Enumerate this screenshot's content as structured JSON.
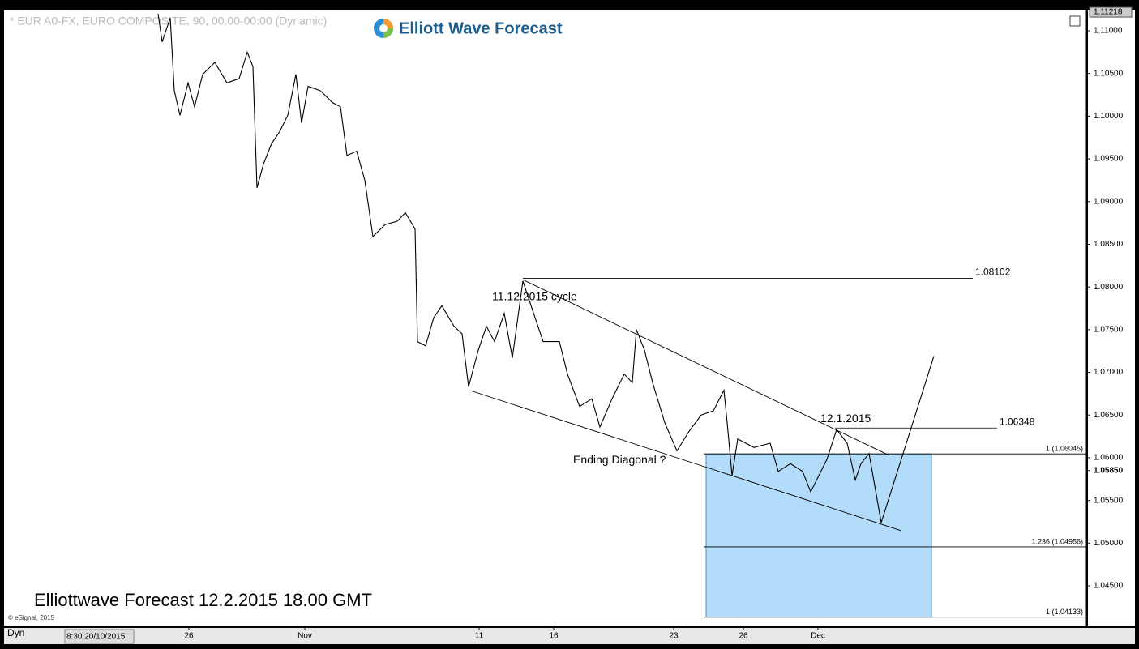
{
  "chart_data": {
    "type": "line",
    "header": "* EUR A0-FX, EURO COMPOSITE, 90, 00:00-00:00 (Dynamic)",
    "logo": "Elliott Wave Forecast",
    "footer": "Elliottwave Forecast 12.2.2015 18.00 GMT",
    "copyright": "© eSignal, 2015",
    "mode": "Dyn",
    "start_time": "8:30 20/10/2015",
    "xlim": [
      0,
      134
    ],
    "ylim": [
      1.04035,
      1.11247
    ],
    "yticks": [
      {
        "value": 1.11,
        "label": "1.11000"
      },
      {
        "value": 1.105,
        "label": "1.10500"
      },
      {
        "value": 1.1,
        "label": "1.10000"
      },
      {
        "value": 1.095,
        "label": "1.09500"
      },
      {
        "value": 1.09,
        "label": "1.09000"
      },
      {
        "value": 1.085,
        "label": "1.08500"
      },
      {
        "value": 1.08,
        "label": "1.08000"
      },
      {
        "value": 1.075,
        "label": "1.07500"
      },
      {
        "value": 1.07,
        "label": "1.07000"
      },
      {
        "value": 1.065,
        "label": "1.06500"
      },
      {
        "value": 1.06,
        "label": "1.06000"
      },
      {
        "value": 1.055,
        "label": "1.05500"
      },
      {
        "value": 1.05,
        "label": "1.05000"
      },
      {
        "value": 1.045,
        "label": "1.04500"
      }
    ],
    "xticks": [
      {
        "value": 23.3,
        "label": "26"
      },
      {
        "value": 37.6,
        "label": "Nov"
      },
      {
        "value": 59.1,
        "label": "11"
      },
      {
        "value": 68.3,
        "label": "16"
      },
      {
        "value": 83.1,
        "label": "23"
      },
      {
        "value": 91.7,
        "label": "26"
      },
      {
        "value": 100.9,
        "label": "Dec"
      }
    ],
    "high_marker": {
      "value": 1.11218,
      "label": "1.11218"
    },
    "last_price": {
      "value": 1.0585,
      "label": "1.05850"
    },
    "series": [
      {
        "color": "#000000",
        "x": [
          19.5,
          20,
          21,
          21.5,
          22.2,
          23.2,
          24,
          25,
          26.5,
          28,
          29.5,
          30.5,
          31.2,
          31.7,
          32.5,
          33.5,
          34.5,
          35.5,
          36.5,
          37.2,
          38,
          39.5,
          41,
          42,
          42.8,
          44,
          45,
          46,
          47.5,
          49,
          50,
          51.2,
          51.5,
          52.5,
          53.5,
          54.5,
          56,
          57,
          57.8,
          59,
          60,
          61,
          62.2,
          63.2,
          64.5,
          66,
          67,
          69,
          70,
          71.5,
          73,
          74,
          75.5,
          77,
          78,
          78.5,
          79.5,
          80.5,
          82,
          83.5,
          85,
          86.5,
          88,
          89.3,
          89.7,
          90.3,
          91,
          93,
          95,
          96,
          97.5,
          99,
          100,
          101,
          102,
          103.2,
          104.5,
          105.5,
          106.2
        ],
        "values": [
          1.112,
          1.1087,
          1.1115,
          1.103,
          1.1001,
          1.1039,
          1.1011,
          1.1049,
          1.1063,
          1.1039,
          1.1044,
          1.1075,
          1.1058,
          1.0916,
          1.0944,
          1.0968,
          1.0982,
          1.1001,
          1.1049,
          1.0992,
          1.1035,
          1.103,
          1.1016,
          1.1011,
          1.0954,
          1.0959,
          1.0925,
          1.0859,
          1.0873,
          1.0877,
          1.0887,
          1.0868,
          1.0736,
          1.0731,
          1.0764,
          1.0778,
          1.0754,
          1.0745,
          1.0683,
          1.0726,
          1.0754,
          1.0736,
          1.0769,
          1.0717,
          1.0807,
          1.0764,
          1.0736,
          1.0736,
          1.0698,
          1.066,
          1.0669,
          1.0636,
          1.0669,
          1.0698,
          1.0688,
          1.075,
          1.0726,
          1.0688,
          1.0641,
          1.0608,
          1.0631,
          1.065,
          1.0655,
          1.0679,
          1.0641,
          1.0579,
          1.0622,
          1.0612,
          1.0617,
          1.0584,
          1.0593,
          1.0584,
          1.056,
          1.0579,
          1.0598,
          1.0633,
          1.0617,
          1.0574,
          1.0593
        ]
      },
      {
        "color": "#000000",
        "x": [
          106.2,
          107.2,
          108.7,
          115.2
        ],
        "values": [
          1.0593,
          1.0605,
          1.0524,
          1.0719
        ]
      }
    ],
    "trendlines": [
      {
        "x": [
          64.5,
          109.7
        ],
        "values": [
          1.08085,
          1.06027
        ]
      },
      {
        "x": [
          58,
          111.2
        ],
        "values": [
          1.06787,
          1.05145
        ]
      }
    ],
    "levels": [
      {
        "value": 1.08102,
        "x": [
          64.5,
          120
        ]
      },
      {
        "value": 1.06348,
        "x": [
          103,
          123
        ]
      }
    ],
    "fib": [
      {
        "value": 1.06045,
        "label": "1 (1.06045)"
      },
      {
        "value": 1.04956,
        "label": "1.236 (1.04956)"
      },
      {
        "value": 1.04133,
        "label": "1 (1.04133)"
      }
    ],
    "zone": {
      "x": [
        87.1,
        114.9
      ],
      "values": [
        1.06045,
        1.04133
      ],
      "color": "#b3dcfb"
    },
    "annotations": [
      {
        "text": "11.12.2015 cycle",
        "x": 60.7,
        "y": 1.0788
      },
      {
        "text": "12.1.2015",
        "x": 101.2,
        "y": 1.0645
      },
      {
        "text": "Ending Diagonal ?",
        "x": 70.7,
        "y": 1.0597
      }
    ]
  }
}
